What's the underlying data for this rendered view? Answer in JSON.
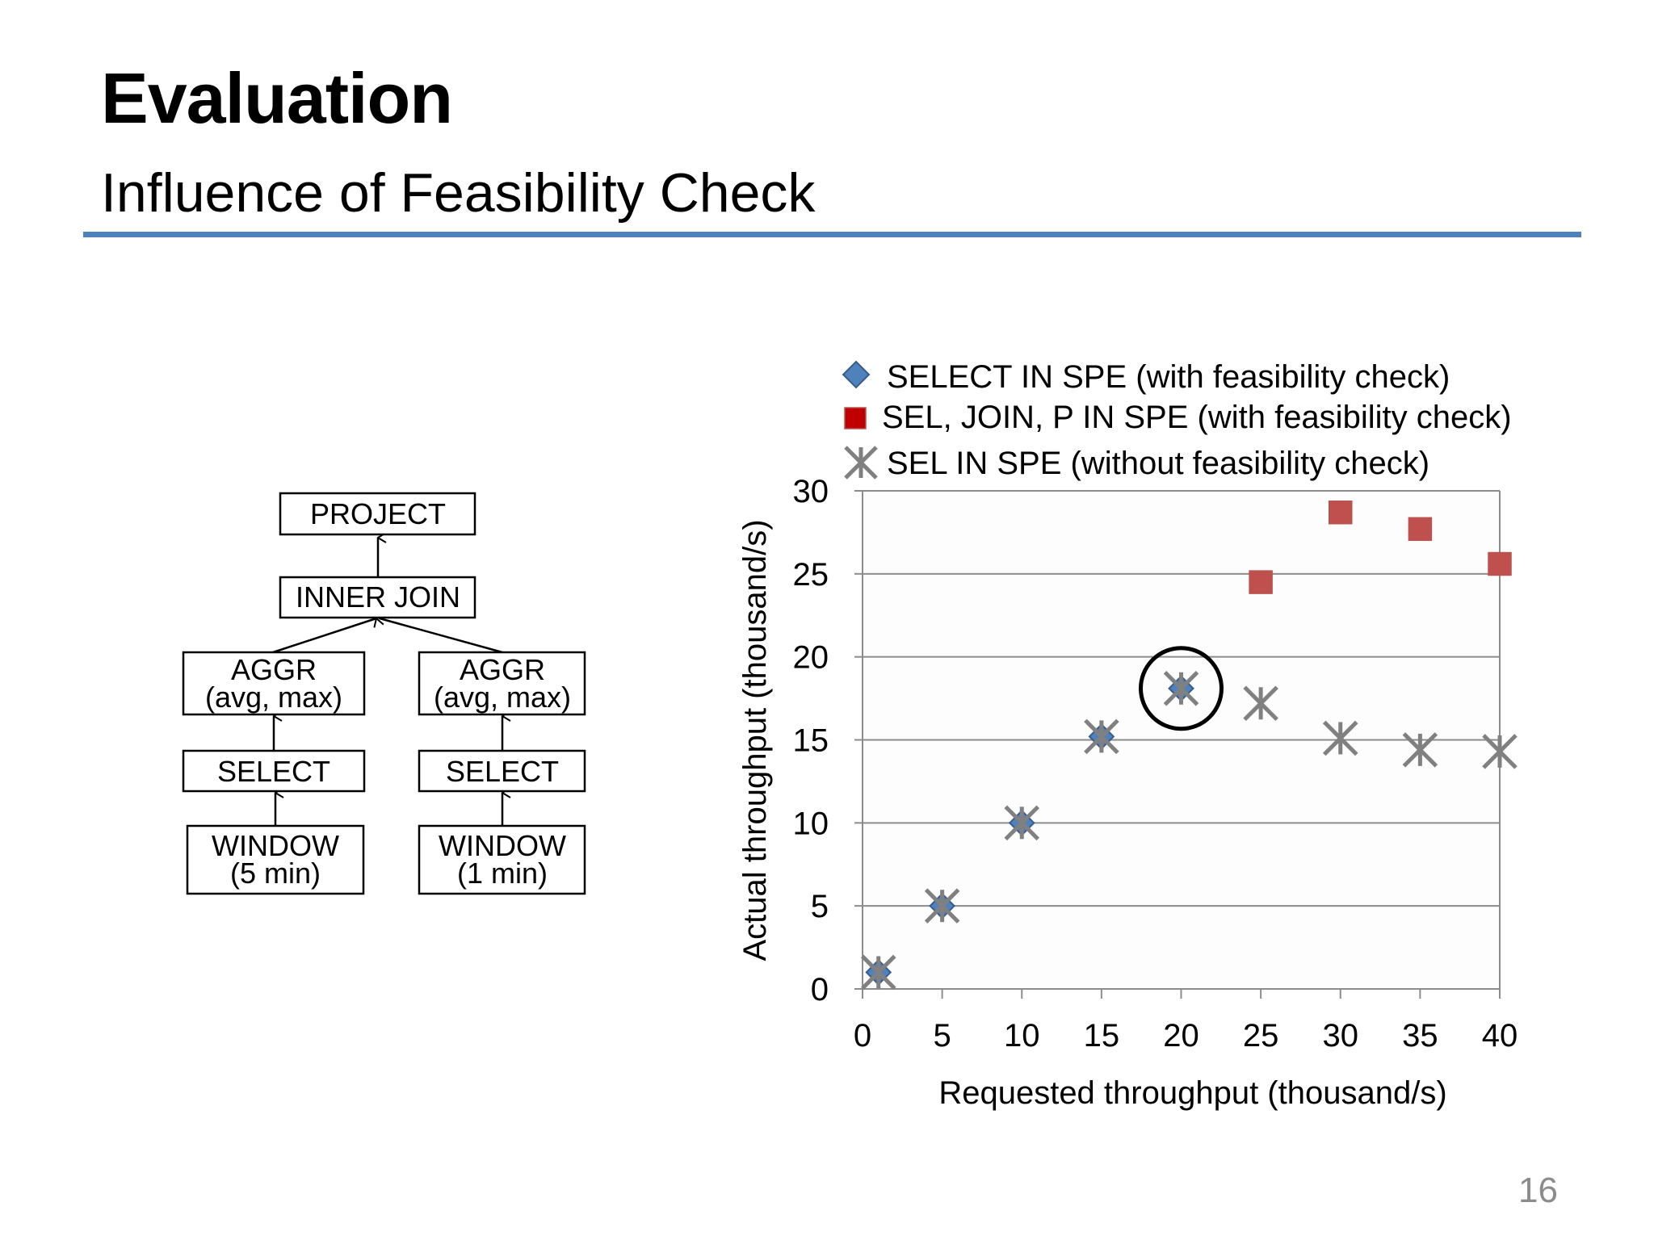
{
  "slide": {
    "title": "Evaluation",
    "subtitle": "Influence of Feasibility Check",
    "page_number": "16",
    "accent_color": "#4f81bd"
  },
  "plan": {
    "project": "PROJECT",
    "inner_join": "INNER JOIN",
    "left": {
      "aggr_line1": "AGGR",
      "aggr_line2": "(avg, max)",
      "select": "SELECT",
      "window_line1": "WINDOW",
      "window_line2": "(5 min)"
    },
    "right": {
      "aggr_line1": "AGGR",
      "aggr_line2": "(avg, max)",
      "select": "SELECT",
      "window_line1": "WINDOW",
      "window_line2": "(1 min)"
    }
  },
  "chart_data": {
    "type": "scatter",
    "title": "",
    "xlabel": "Requested throughput (thousand/s)",
    "ylabel": "Actual throughput (thousand/s)",
    "xlim": [
      0,
      40
    ],
    "ylim": [
      0,
      30
    ],
    "xticks": [
      0,
      5,
      10,
      15,
      20,
      25,
      30,
      35,
      40
    ],
    "yticks": [
      0,
      5,
      10,
      15,
      20,
      25,
      30
    ],
    "grid": "horizontal",
    "legend_position": "top",
    "series": [
      {
        "name": "SELECT IN SPE (with feasibility check)",
        "marker": "diamond",
        "color": "#4f81bd",
        "points": [
          [
            1,
            1
          ],
          [
            5,
            5
          ],
          [
            10,
            10
          ],
          [
            15,
            15.2
          ],
          [
            20,
            18.1
          ]
        ]
      },
      {
        "name": "SEL, JOIN, P IN SPE (with feasibility check)",
        "marker": "square",
        "color": "#c0504d",
        "legend_color": "#c00000",
        "points": [
          [
            25,
            24.5
          ],
          [
            30,
            28.7
          ],
          [
            35,
            27.7
          ],
          [
            40,
            25.6
          ]
        ]
      },
      {
        "name": "SEL IN SPE (without feasibility check)",
        "marker": "asterisk",
        "color": "#808080",
        "points": [
          [
            1,
            1
          ],
          [
            5,
            5
          ],
          [
            10,
            10
          ],
          [
            15,
            15.2
          ],
          [
            20,
            18.1
          ],
          [
            25,
            17.2
          ],
          [
            30,
            15.1
          ],
          [
            35,
            14.4
          ],
          [
            40,
            14.3
          ]
        ]
      }
    ],
    "annotations": [
      {
        "type": "circle",
        "x": 20,
        "y": 18.1
      }
    ]
  }
}
